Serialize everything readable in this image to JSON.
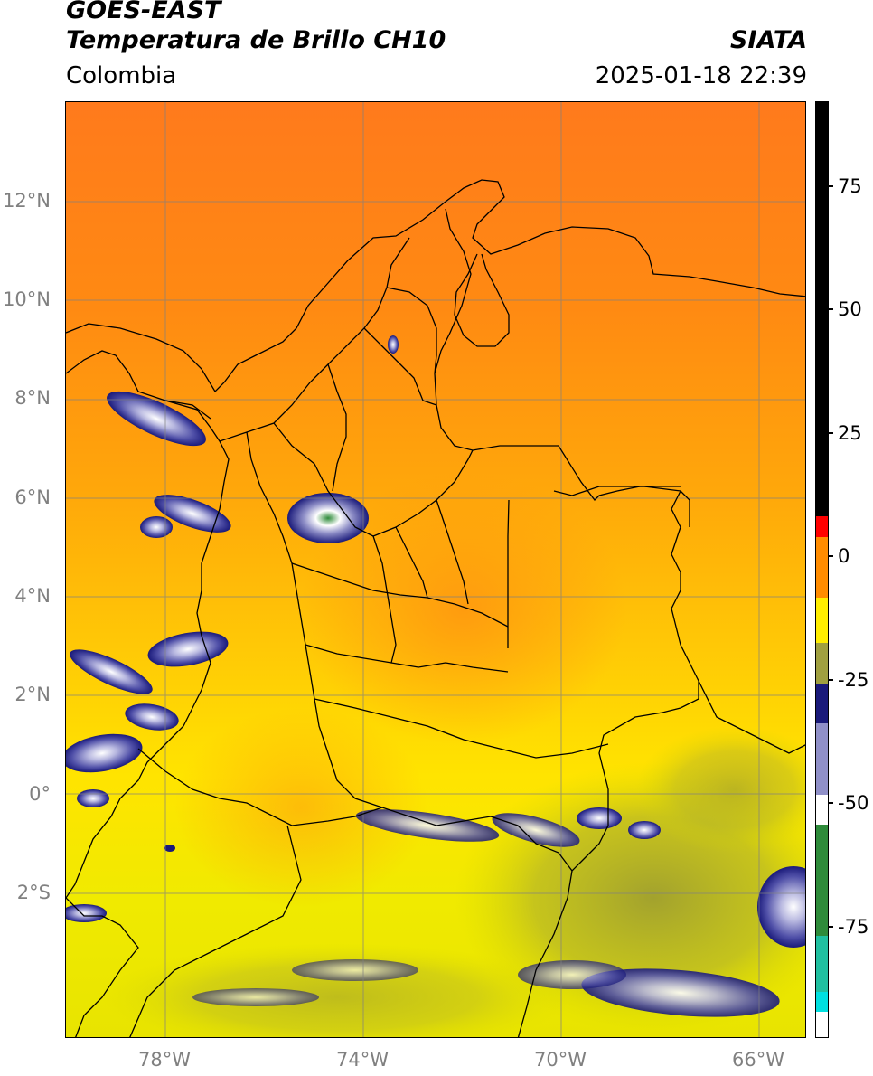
{
  "header": {
    "title_line1": "GOES-EAST",
    "title_line2": "Temperatura de Brillo CH10",
    "region": "Colombia",
    "organization": "SIATA",
    "timestamp": "2025-01-18 22:39"
  },
  "map": {
    "lat_ticks": [
      "12°N",
      "10°N",
      "8°N",
      "6°N",
      "4°N",
      "2°N",
      "0°",
      "2°S"
    ],
    "lon_ticks": [
      "78°W",
      "74°W",
      "70°W",
      "66°W"
    ],
    "gridlines": true,
    "colors": {
      "warm_orange": "#ff7f1a",
      "orange": "#ff9a10",
      "yellow": "#ffee00",
      "olive": "#a8a833",
      "navy": "#1a1a8a",
      "lavender": "#9a9ad0",
      "white": "#ffffff",
      "green": "#2e8b3a",
      "border": "#000000",
      "grid": "#808080"
    }
  },
  "colorbar": {
    "ticks": [
      "75",
      "50",
      "25",
      "0",
      "-25",
      "-50",
      "-75"
    ],
    "segments": [
      {
        "color": "#000000",
        "from": 90,
        "to": 8
      },
      {
        "color": "#ff0000",
        "from": 8,
        "to": 4
      },
      {
        "color": "#ff8c00",
        "from": 4,
        "to": -8
      },
      {
        "color": "#ffee00",
        "from": -8,
        "to": -17
      },
      {
        "color": "#a0a040",
        "from": -17,
        "to": -25
      },
      {
        "color": "#1a1a7a",
        "from": -25,
        "to": -33
      },
      {
        "color": "#9090c8",
        "from": -33,
        "to": -47
      },
      {
        "color": "#ffffff",
        "from": -47,
        "to": -53
      },
      {
        "color": "#2e8b3a",
        "from": -53,
        "to": -75
      },
      {
        "color": "#20c0a0",
        "from": -75,
        "to": -86
      },
      {
        "color": "#00e0e0",
        "from": -86,
        "to": -90
      },
      {
        "color": "#ffffff",
        "from": -90,
        "to": -95
      }
    ],
    "range": [
      -95,
      90
    ]
  }
}
